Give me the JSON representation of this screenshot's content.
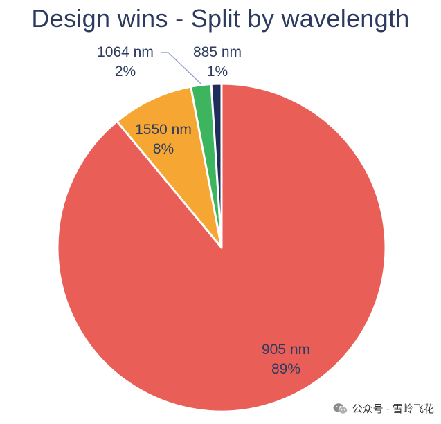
{
  "chart_data": {
    "type": "pie",
    "title": "Design wins - Split by wavelength",
    "categories": [
      "905 nm",
      "1550 nm",
      "1064 nm",
      "885 nm"
    ],
    "values": [
      89,
      8,
      2,
      1
    ],
    "value_labels": [
      "89%",
      "8%",
      "2%",
      "1%"
    ],
    "colors": [
      "#e95f58",
      "#f6a633",
      "#3cb55e",
      "#1f2d5a"
    ],
    "start_angle": "12 o'clock",
    "direction": "clockwise"
  },
  "watermark": {
    "text": "公众号 · 雪岭飞花",
    "icon": "wechat-icon"
  }
}
